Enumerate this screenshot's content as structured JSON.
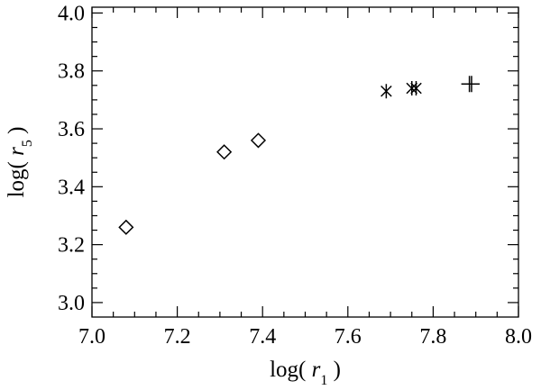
{
  "chart_data": {
    "type": "scatter",
    "xlabel": {
      "prefix": "log( ",
      "var": "r",
      "sub": "1",
      "suffix": " )"
    },
    "ylabel": {
      "prefix": "log( ",
      "var": "r",
      "sub": "5",
      "suffix": " )"
    },
    "xlim": [
      7.0,
      8.0
    ],
    "ylim": [
      2.95,
      4.02
    ],
    "xticks": [
      "7.0",
      "7.2",
      "7.4",
      "7.6",
      "7.8",
      "8.0"
    ],
    "yticks": [
      "3.0",
      "3.2",
      "3.4",
      "3.6",
      "3.8",
      "4.0"
    ],
    "grid": false,
    "series": [
      {
        "marker": "diamond",
        "points": [
          [
            7.08,
            3.26
          ],
          [
            7.31,
            3.52
          ],
          [
            7.39,
            3.56
          ]
        ]
      },
      {
        "marker": "asterisk",
        "points": [
          [
            7.69,
            3.73
          ],
          [
            7.75,
            3.74
          ],
          [
            7.76,
            3.74
          ]
        ]
      },
      {
        "marker": "plus",
        "points": [
          [
            7.885,
            3.755
          ],
          [
            7.89,
            3.755
          ]
        ]
      }
    ]
  }
}
